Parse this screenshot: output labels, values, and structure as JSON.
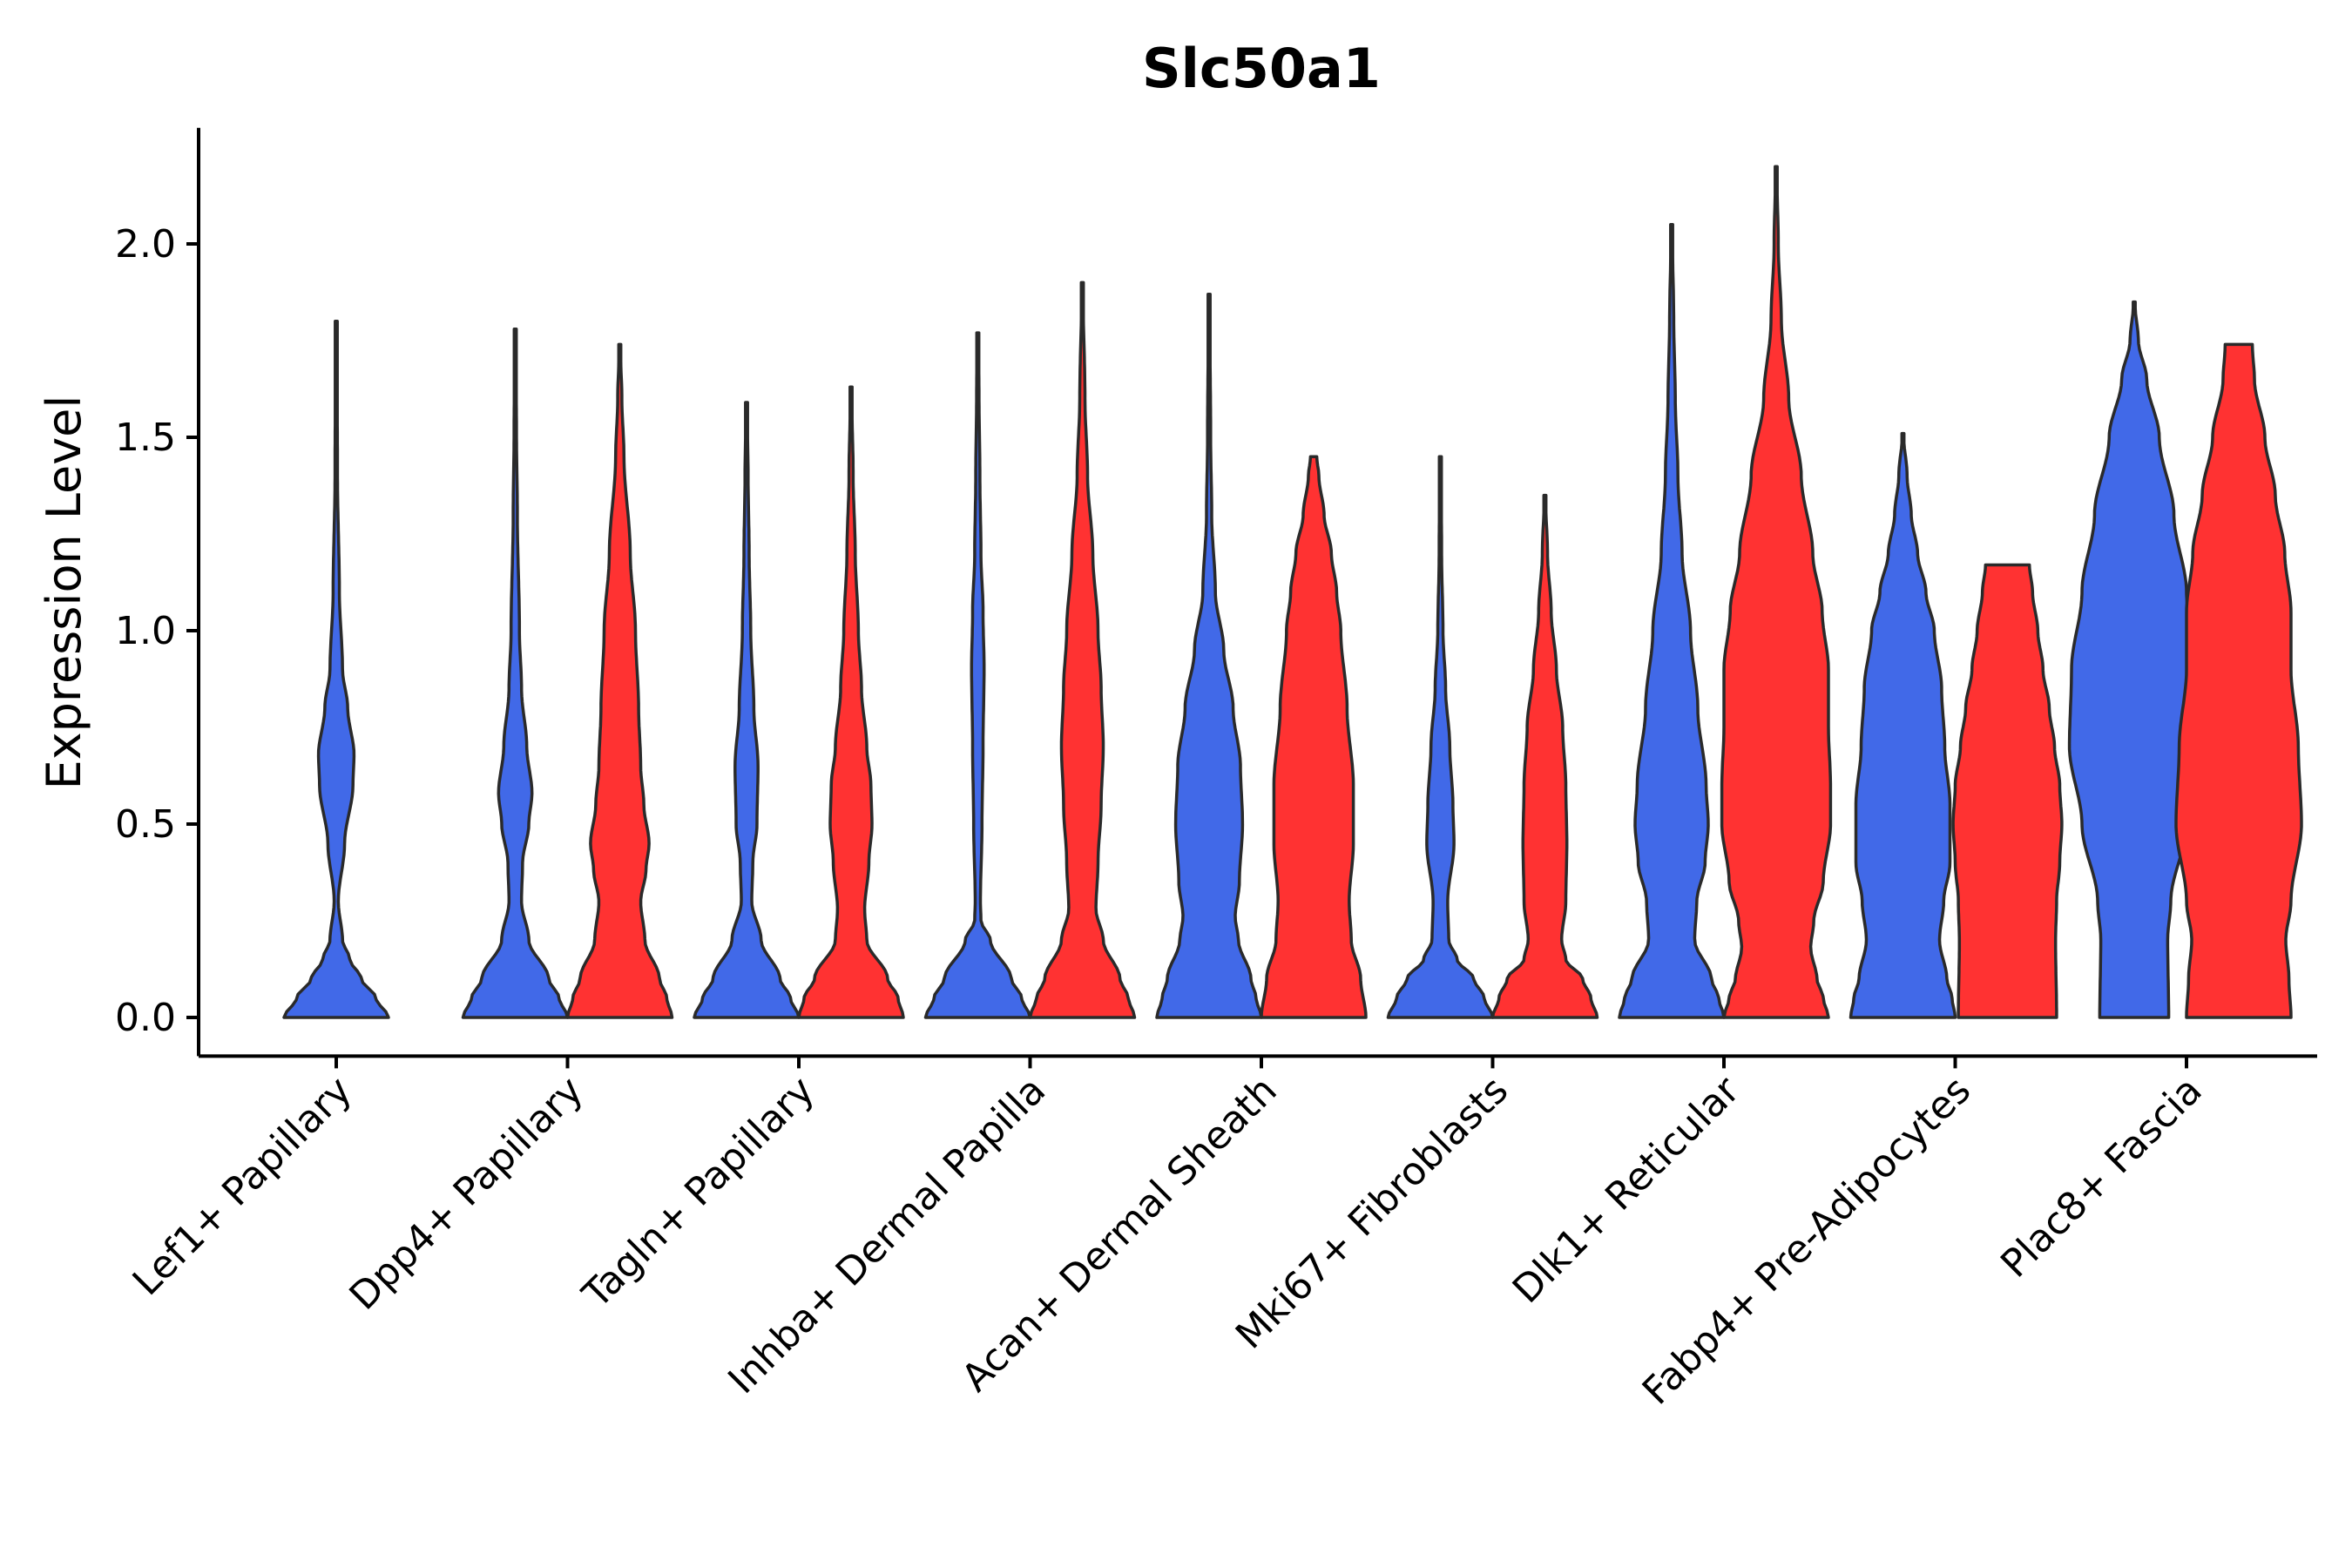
{
  "chart_data": {
    "type": "violin",
    "title": "Slc50a1",
    "xlabel": "",
    "ylabel": "Expression Level",
    "ylim": [
      -0.1,
      2.3
    ],
    "yticks": [
      0.0,
      0.5,
      1.0,
      1.5,
      2.0
    ],
    "ytick_labels": [
      "0.0",
      "0.5",
      "1.0",
      "1.5",
      "2.0"
    ],
    "series_colors": {
      "group1": "#4169e8",
      "group2": "#ff3232"
    },
    "categories": [
      "Lef1+ Papillary",
      "Dpp4+ Papillary",
      "Tagln+ Papillary",
      "Inhba+ Dermal Papilla",
      "Acan+ Dermal Sheath",
      "Mki67+ Fibroblasts",
      "Dlk1+ Reticular",
      "Fabp4+ Pre-Adipocytes",
      "Plac8+ Fascia"
    ],
    "violins": [
      {
        "category": "Lef1+ Papillary",
        "group": "group1",
        "max": 1.8,
        "profile": [
          [
            0,
            0.5
          ],
          [
            0.05,
            0.38
          ],
          [
            0.1,
            0.24
          ],
          [
            0.15,
            0.13
          ],
          [
            0.2,
            0.06
          ],
          [
            0.3,
            0.02
          ],
          [
            0.45,
            0.08
          ],
          [
            0.6,
            0.16
          ],
          [
            0.68,
            0.17
          ],
          [
            0.8,
            0.11
          ],
          [
            0.9,
            0.06
          ],
          [
            1.1,
            0.03
          ],
          [
            1.4,
            0.012
          ],
          [
            1.8,
            0.005
          ]
        ]
      },
      {
        "category": "Dpp4+ Papillary",
        "group": "group1",
        "max": 1.78,
        "profile": [
          [
            0,
            0.5
          ],
          [
            0.05,
            0.42
          ],
          [
            0.1,
            0.32
          ],
          [
            0.2,
            0.13
          ],
          [
            0.3,
            0.06
          ],
          [
            0.4,
            0.07
          ],
          [
            0.5,
            0.13
          ],
          [
            0.58,
            0.16
          ],
          [
            0.7,
            0.11
          ],
          [
            0.85,
            0.06
          ],
          [
            1.0,
            0.04
          ],
          [
            1.3,
            0.02
          ],
          [
            1.5,
            0.012
          ],
          [
            1.78,
            0.005
          ]
        ]
      },
      {
        "category": "Dpp4+ Papillary",
        "group": "group2",
        "max": 1.74,
        "profile": [
          [
            0,
            0.5
          ],
          [
            0.05,
            0.45
          ],
          [
            0.1,
            0.38
          ],
          [
            0.2,
            0.24
          ],
          [
            0.3,
            0.2
          ],
          [
            0.38,
            0.25
          ],
          [
            0.45,
            0.28
          ],
          [
            0.55,
            0.23
          ],
          [
            0.65,
            0.2
          ],
          [
            0.8,
            0.18
          ],
          [
            1.0,
            0.15
          ],
          [
            1.2,
            0.1
          ],
          [
            1.45,
            0.04
          ],
          [
            1.6,
            0.02
          ],
          [
            1.74,
            0.005
          ]
        ]
      },
      {
        "category": "Tagln+ Papillary",
        "group": "group1",
        "max": 1.59,
        "profile": [
          [
            0,
            0.5
          ],
          [
            0.05,
            0.42
          ],
          [
            0.1,
            0.32
          ],
          [
            0.2,
            0.14
          ],
          [
            0.3,
            0.05
          ],
          [
            0.4,
            0.06
          ],
          [
            0.5,
            0.1
          ],
          [
            0.65,
            0.11
          ],
          [
            0.8,
            0.07
          ],
          [
            1.0,
            0.04
          ],
          [
            1.2,
            0.025
          ],
          [
            1.4,
            0.015
          ],
          [
            1.59,
            0.005
          ]
        ]
      },
      {
        "category": "Tagln+ Papillary",
        "group": "group2",
        "max": 1.63,
        "profile": [
          [
            0,
            0.5
          ],
          [
            0.05,
            0.45
          ],
          [
            0.1,
            0.35
          ],
          [
            0.2,
            0.15
          ],
          [
            0.28,
            0.13
          ],
          [
            0.4,
            0.17
          ],
          [
            0.5,
            0.2
          ],
          [
            0.6,
            0.19
          ],
          [
            0.7,
            0.15
          ],
          [
            0.85,
            0.1
          ],
          [
            1.0,
            0.07
          ],
          [
            1.2,
            0.04
          ],
          [
            1.4,
            0.02
          ],
          [
            1.63,
            0.005
          ]
        ]
      },
      {
        "category": "Inhba+ Dermal Papilla",
        "group": "group1",
        "max": 1.77,
        "profile": [
          [
            0,
            0.5
          ],
          [
            0.05,
            0.42
          ],
          [
            0.1,
            0.32
          ],
          [
            0.2,
            0.12
          ],
          [
            0.25,
            0.03
          ],
          [
            0.3,
            0.025
          ],
          [
            0.5,
            0.04
          ],
          [
            0.7,
            0.05
          ],
          [
            0.9,
            0.06
          ],
          [
            1.05,
            0.05
          ],
          [
            1.2,
            0.03
          ],
          [
            1.4,
            0.02
          ],
          [
            1.6,
            0.012
          ],
          [
            1.77,
            0.005
          ]
        ]
      },
      {
        "category": "Inhba+ Dermal Papilla",
        "group": "group2",
        "max": 1.9,
        "profile": [
          [
            0,
            0.5
          ],
          [
            0.05,
            0.44
          ],
          [
            0.1,
            0.36
          ],
          [
            0.2,
            0.2
          ],
          [
            0.28,
            0.13
          ],
          [
            0.4,
            0.15
          ],
          [
            0.55,
            0.18
          ],
          [
            0.7,
            0.2
          ],
          [
            0.85,
            0.18
          ],
          [
            1.0,
            0.15
          ],
          [
            1.2,
            0.1
          ],
          [
            1.4,
            0.05
          ],
          [
            1.6,
            0.025
          ],
          [
            1.9,
            0.005
          ]
        ]
      },
      {
        "category": "Acan+ Dermal Sheath",
        "group": "group1",
        "max": 1.87,
        "profile": [
          [
            0,
            0.5
          ],
          [
            0.05,
            0.45
          ],
          [
            0.1,
            0.4
          ],
          [
            0.2,
            0.28
          ],
          [
            0.26,
            0.25
          ],
          [
            0.35,
            0.29
          ],
          [
            0.5,
            0.32
          ],
          [
            0.65,
            0.3
          ],
          [
            0.8,
            0.23
          ],
          [
            0.95,
            0.14
          ],
          [
            1.1,
            0.06
          ],
          [
            1.3,
            0.025
          ],
          [
            1.5,
            0.015
          ],
          [
            1.87,
            0.005
          ]
        ]
      },
      {
        "category": "Acan+ Dermal Sheath",
        "group": "group2",
        "max": 1.45,
        "profile": [
          [
            0,
            0.5
          ],
          [
            0.1,
            0.45
          ],
          [
            0.2,
            0.36
          ],
          [
            0.3,
            0.34
          ],
          [
            0.45,
            0.38
          ],
          [
            0.6,
            0.38
          ],
          [
            0.8,
            0.32
          ],
          [
            1.0,
            0.26
          ],
          [
            1.1,
            0.22
          ],
          [
            1.2,
            0.17
          ],
          [
            1.3,
            0.1
          ],
          [
            1.4,
            0.05
          ],
          [
            1.45,
            0.03
          ]
        ]
      },
      {
        "category": "Mki67+ Fibroblasts",
        "group": "group1",
        "max": 1.45,
        "profile": [
          [
            0,
            0.5
          ],
          [
            0.05,
            0.42
          ],
          [
            0.1,
            0.32
          ],
          [
            0.15,
            0.16
          ],
          [
            0.2,
            0.08
          ],
          [
            0.3,
            0.07
          ],
          [
            0.45,
            0.13
          ],
          [
            0.55,
            0.12
          ],
          [
            0.7,
            0.09
          ],
          [
            0.85,
            0.05
          ],
          [
            1.0,
            0.025
          ],
          [
            1.2,
            0.012
          ],
          [
            1.45,
            0.005
          ]
        ]
      },
      {
        "category": "Mki67+ Fibroblasts",
        "group": "group2",
        "max": 1.35,
        "profile": [
          [
            0,
            0.5
          ],
          [
            0.05,
            0.44
          ],
          [
            0.1,
            0.36
          ],
          [
            0.15,
            0.2
          ],
          [
            0.2,
            0.16
          ],
          [
            0.3,
            0.2
          ],
          [
            0.45,
            0.21
          ],
          [
            0.6,
            0.2
          ],
          [
            0.75,
            0.17
          ],
          [
            0.9,
            0.11
          ],
          [
            1.05,
            0.06
          ],
          [
            1.2,
            0.025
          ],
          [
            1.35,
            0.005
          ]
        ]
      },
      {
        "category": "Dlk1+ Reticular",
        "group": "group1",
        "max": 2.05,
        "profile": [
          [
            0,
            0.5
          ],
          [
            0.05,
            0.45
          ],
          [
            0.1,
            0.38
          ],
          [
            0.2,
            0.22
          ],
          [
            0.3,
            0.24
          ],
          [
            0.4,
            0.32
          ],
          [
            0.5,
            0.35
          ],
          [
            0.6,
            0.33
          ],
          [
            0.8,
            0.25
          ],
          [
            1.0,
            0.18
          ],
          [
            1.2,
            0.1
          ],
          [
            1.4,
            0.06
          ],
          [
            1.6,
            0.035
          ],
          [
            1.8,
            0.02
          ],
          [
            2.05,
            0.005
          ]
        ]
      },
      {
        "category": "Dlk1+ Reticular",
        "group": "group2",
        "max": 2.2,
        "profile": [
          [
            0,
            0.5
          ],
          [
            0.05,
            0.45
          ],
          [
            0.1,
            0.39
          ],
          [
            0.18,
            0.33
          ],
          [
            0.25,
            0.36
          ],
          [
            0.35,
            0.45
          ],
          [
            0.5,
            0.52
          ],
          [
            0.6,
            0.52
          ],
          [
            0.75,
            0.5
          ],
          [
            0.9,
            0.5
          ],
          [
            1.05,
            0.44
          ],
          [
            1.2,
            0.35
          ],
          [
            1.4,
            0.24
          ],
          [
            1.6,
            0.12
          ],
          [
            1.8,
            0.05
          ],
          [
            2.0,
            0.02
          ],
          [
            2.2,
            0.005
          ]
        ]
      },
      {
        "category": "Fabp4+ Pre-Adipocytes",
        "group": "group1",
        "max": 1.51,
        "profile": [
          [
            0,
            0.5
          ],
          [
            0.05,
            0.47
          ],
          [
            0.1,
            0.42
          ],
          [
            0.2,
            0.35
          ],
          [
            0.3,
            0.39
          ],
          [
            0.4,
            0.45
          ],
          [
            0.55,
            0.45
          ],
          [
            0.7,
            0.4
          ],
          [
            0.85,
            0.37
          ],
          [
            1.0,
            0.3
          ],
          [
            1.1,
            0.22
          ],
          [
            1.2,
            0.14
          ],
          [
            1.3,
            0.08
          ],
          [
            1.4,
            0.04
          ],
          [
            1.51,
            0.005
          ]
        ]
      },
      {
        "category": "Fabp4+ Pre-Adipocytes",
        "group": "group2",
        "max": 1.17,
        "profile": [
          [
            0,
            0.47
          ],
          [
            0.2,
            0.46
          ],
          [
            0.3,
            0.47
          ],
          [
            0.4,
            0.5
          ],
          [
            0.5,
            0.52
          ],
          [
            0.6,
            0.5
          ],
          [
            0.7,
            0.45
          ],
          [
            0.8,
            0.4
          ],
          [
            0.9,
            0.34
          ],
          [
            1.0,
            0.29
          ],
          [
            1.1,
            0.24
          ],
          [
            1.17,
            0.21
          ]
        ]
      },
      {
        "category": "Plac8+ Fascia",
        "group": "group1",
        "max": 1.85,
        "profile": [
          [
            0,
            0.33
          ],
          [
            0.2,
            0.32
          ],
          [
            0.3,
            0.35
          ],
          [
            0.5,
            0.5
          ],
          [
            0.7,
            0.62
          ],
          [
            0.9,
            0.6
          ],
          [
            1.1,
            0.5
          ],
          [
            1.3,
            0.38
          ],
          [
            1.5,
            0.24
          ],
          [
            1.65,
            0.12
          ],
          [
            1.75,
            0.04
          ],
          [
            1.85,
            0.005
          ]
        ]
      },
      {
        "category": "Plac8+ Fascia",
        "group": "group2",
        "max": 1.74,
        "profile": [
          [
            0,
            0.5
          ],
          [
            0.1,
            0.48
          ],
          [
            0.2,
            0.45
          ],
          [
            0.3,
            0.5
          ],
          [
            0.5,
            0.6
          ],
          [
            0.7,
            0.57
          ],
          [
            0.9,
            0.5
          ],
          [
            1.05,
            0.5
          ],
          [
            1.2,
            0.44
          ],
          [
            1.35,
            0.35
          ],
          [
            1.5,
            0.25
          ],
          [
            1.65,
            0.15
          ],
          [
            1.74,
            0.13
          ]
        ]
      }
    ]
  }
}
